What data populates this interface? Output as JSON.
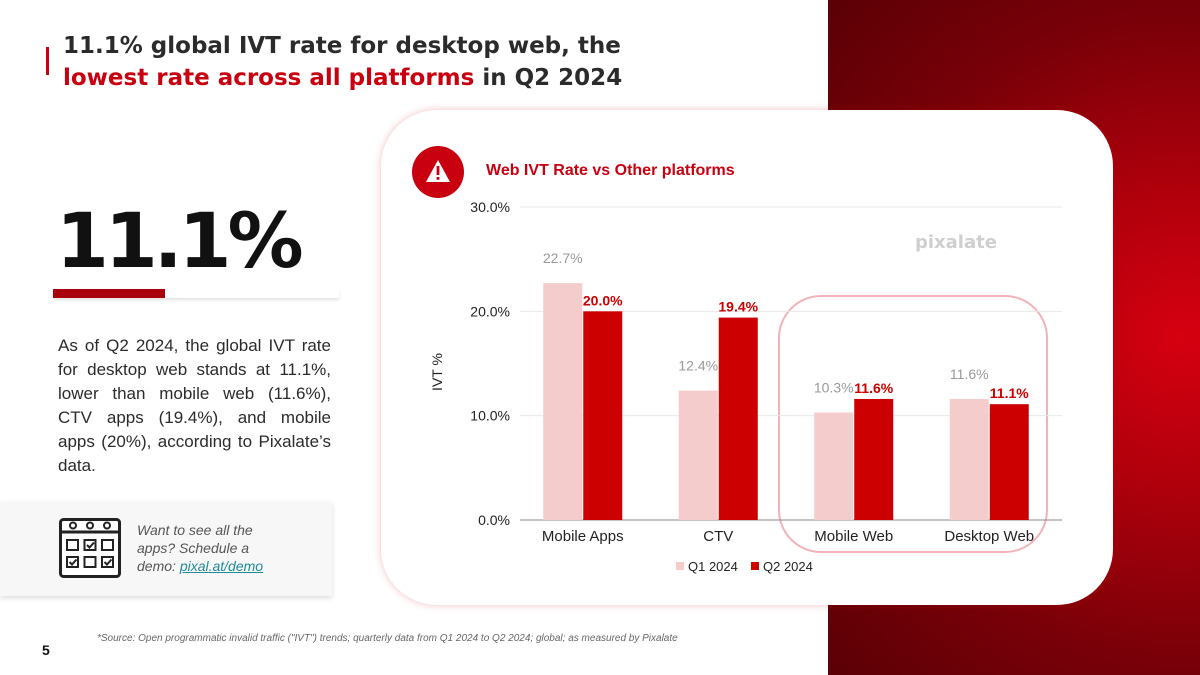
{
  "page": {
    "page_number": "5",
    "title_part1": "11.1% global IVT rate for desktop web, the",
    "title_highlight": "lowest rate across all platforms",
    "title_part2": " in Q2 2024",
    "big_stat": "11.1%",
    "stat_bar_fraction": 0.39,
    "description": "As of Q2 2024, the global IVT rate for desktop web stands at 11.1%, lower than mobile web (11.6%), CTV apps (19.4%), and mobile apps (20%), according to Pixalate’s data.",
    "cta_text": "Want to see all the apps? Schedule a demo: ",
    "cta_link": "pixal.at/demo",
    "source": "*Source: Open programmatic invalid traffic (\"IVT\") trends; quarterly data from Q1 2024 to Q2 2024; global; as measured by Pixalate",
    "warning_icon": "warning-icon",
    "calendar_icon": "calendar-icon",
    "brand_color": "#c8000f"
  },
  "chart_data": {
    "type": "bar",
    "title": "Web IVT Rate vs Other platforms",
    "watermark": "pixalate",
    "ylabel": "IVT %",
    "xlabel": "",
    "ylim": [
      0,
      30
    ],
    "yticks": [
      "0.0%",
      "10.0%",
      "20.0%",
      "30.0%"
    ],
    "ytick_values": [
      0,
      10,
      20,
      30
    ],
    "grid": true,
    "legend_position": "bottom",
    "categories": [
      "Mobile Apps",
      "CTV",
      "Mobile Web",
      "Desktop Web"
    ],
    "highlighted_categories": [
      "Mobile Web",
      "Desktop Web"
    ],
    "series": [
      {
        "name": "Q1 2024",
        "color": "#f4cccc",
        "label_color": "#999999",
        "values": [
          22.7,
          12.4,
          10.3,
          11.6
        ],
        "labels": [
          "22.7%",
          "12.4%",
          "10.3%",
          "11.6%"
        ]
      },
      {
        "name": "Q2 2024",
        "color": "#cc0000",
        "label_color": "#cc0000",
        "values": [
          20.0,
          19.4,
          11.6,
          11.1
        ],
        "labels": [
          "20.0%",
          "19.4%",
          "11.6%",
          "11.1%"
        ]
      }
    ]
  }
}
